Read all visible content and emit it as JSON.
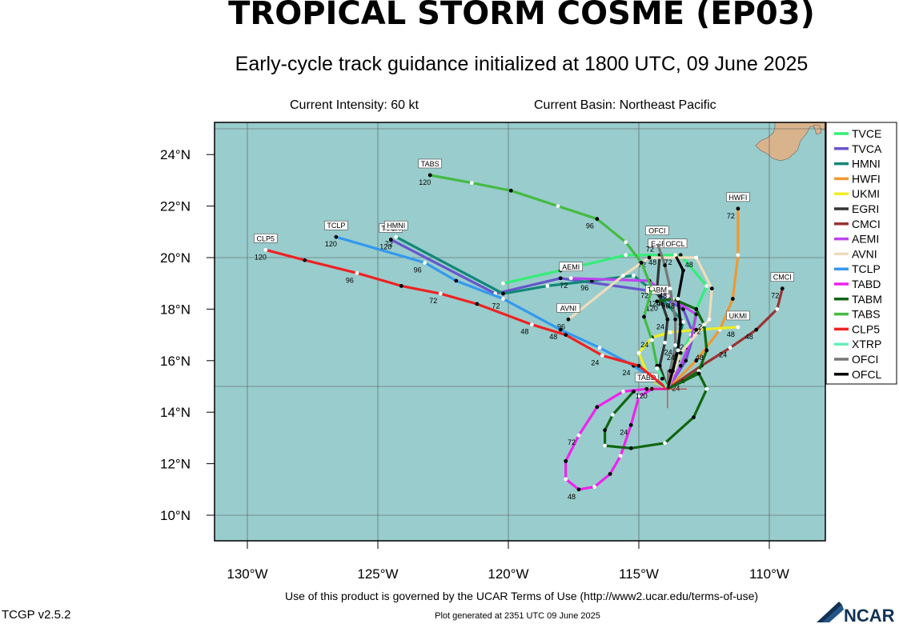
{
  "header": {
    "title": "TROPICAL STORM COSME (EP03)",
    "subtitle": "Early-cycle track guidance initialized at 1800 UTC, 09 June 2025",
    "intensity": "Current Intensity: 60 kt",
    "basin": "Current Basin: Northeast Pacific"
  },
  "footer": {
    "terms": "Use of this product is governed by the UCAR Terms of Use (http://www2.ucar.edu/terms-of-use)",
    "generated": "Plot generated at 2351 UTC   09 June 2025",
    "version": "TCGP v2.5.2",
    "logo": "NCAR"
  },
  "map": {
    "lat_labels": [
      "24°N",
      "22°N",
      "20°N",
      "18°N",
      "16°N",
      "14°N",
      "12°N",
      "10°N"
    ],
    "lon_labels": [
      "130°W",
      "125°W",
      "120°W",
      "115°W",
      "110°W"
    ],
    "ocean_color": "#99cccc",
    "land_color": "#d9b38c",
    "current_position": {
      "lon": -113.9,
      "lat": 14.9
    }
  },
  "legend": [
    {
      "name": "TVCE",
      "color": "#33ee77"
    },
    {
      "name": "TVCA",
      "color": "#6655cc"
    },
    {
      "name": "HMNI",
      "color": "#118877"
    },
    {
      "name": "HWFI",
      "color": "#ee9933"
    },
    {
      "name": "UKMI",
      "color": "#eeee22"
    },
    {
      "name": "EGRI",
      "color": "#333333"
    },
    {
      "name": "CMCI",
      "color": "#993333"
    },
    {
      "name": "AEMI",
      "color": "#bb44ee"
    },
    {
      "name": "AVNI",
      "color": "#eeddbb"
    },
    {
      "name": "TCLP",
      "color": "#3399ee"
    },
    {
      "name": "TABD",
      "color": "#ee22ee"
    },
    {
      "name": "TABM",
      "color": "#116611"
    },
    {
      "name": "TABS",
      "color": "#44bb44"
    },
    {
      "name": "CLP5",
      "color": "#ee2222"
    },
    {
      "name": "XTRP",
      "color": "#66eebb"
    },
    {
      "name": "OFCI",
      "color": "#777777"
    },
    {
      "name": "OFCL",
      "color": "#000000"
    }
  ],
  "tracks": [
    {
      "name": "TVCE",
      "label": "",
      "points": [
        [
          -113.9,
          14.9
        ],
        [
          -113.5,
          16
        ],
        [
          -113,
          17
        ],
        [
          -112.8,
          18
        ],
        [
          -112.4,
          18.9
        ],
        [
          -113.4,
          20.1
        ],
        [
          -115.5,
          20.1
        ],
        [
          -118,
          19.5
        ],
        [
          -120.2,
          19
        ]
      ],
      "hours": []
    },
    {
      "name": "TVCA",
      "label": "TVCA",
      "points": [
        [
          -113.9,
          14.9
        ],
        [
          -113.2,
          16
        ],
        [
          -112.9,
          17
        ],
        [
          -113.3,
          18
        ],
        [
          -114.5,
          18.7
        ],
        [
          -118,
          19.2
        ],
        [
          -120.5,
          18.6
        ],
        [
          -124.5,
          20.7
        ]
      ],
      "hours": [
        "120"
      ]
    },
    {
      "name": "HMNI",
      "label": "HMNI",
      "points": [
        [
          -113.9,
          14.9
        ],
        [
          -113.6,
          16.2
        ],
        [
          -113.3,
          17.5
        ],
        [
          -114.2,
          18.5
        ],
        [
          -115.2,
          19.3
        ],
        [
          -116.8,
          19.1
        ],
        [
          -118.5,
          18.9
        ],
        [
          -120.2,
          18.6
        ],
        [
          -124.3,
          20.8
        ]
      ],
      "hours": [
        "120",
        "96",
        "72"
      ]
    },
    {
      "name": "HWFI",
      "label": "HWFI",
      "points": [
        [
          -113.9,
          14.9
        ],
        [
          -112.8,
          16
        ],
        [
          -111.9,
          17.2
        ],
        [
          -111.4,
          18.4
        ],
        [
          -111.2,
          20.1
        ],
        [
          -111.2,
          21.9
        ]
      ],
      "hours": [
        "72"
      ]
    },
    {
      "name": "UKMI",
      "label": "UKMI",
      "points": [
        [
          -113.9,
          14.9
        ],
        [
          -114.6,
          15.3
        ],
        [
          -115,
          16.3
        ],
        [
          -114.5,
          16.9
        ],
        [
          -113.8,
          17.1
        ],
        [
          -112.8,
          17.2
        ],
        [
          -111.2,
          17.3
        ]
      ],
      "hours": [
        "24",
        "48"
      ]
    },
    {
      "name": "EGRI",
      "label": "EGRI",
      "points": [
        [
          -113.9,
          14.9
        ],
        [
          -114.2,
          15.8
        ],
        [
          -114,
          16.7
        ],
        [
          -113.9,
          17.6
        ],
        [
          -114.3,
          18.8
        ],
        [
          -114.2,
          20.1
        ]
      ],
      "hours": [
        "24",
        "48"
      ]
    },
    {
      "name": "CMCI",
      "label": "CMCI",
      "points": [
        [
          -113.9,
          14.9
        ],
        [
          -112.6,
          15.8
        ],
        [
          -111.5,
          16.5
        ],
        [
          -110.5,
          17.2
        ],
        [
          -109.7,
          18
        ],
        [
          -109.5,
          18.8
        ]
      ],
      "hours": [
        "24",
        "48",
        "72"
      ]
    },
    {
      "name": "AEMI",
      "label": "AEMI",
      "points": [
        [
          -113.9,
          14.9
        ],
        [
          -113.4,
          15.8
        ],
        [
          -113,
          16.8
        ],
        [
          -112.8,
          17.8
        ],
        [
          -113.9,
          18.5
        ],
        [
          -114.6,
          19.1
        ],
        [
          -117.6,
          19.2
        ]
      ],
      "hours": [
        "24",
        "48",
        "72"
      ]
    },
    {
      "name": "AVNI",
      "label": "AVNI",
      "points": [
        [
          -113.9,
          14.9
        ],
        [
          -113.4,
          16.3
        ],
        [
          -112.3,
          17.6
        ],
        [
          -112.2,
          18.8
        ],
        [
          -112.8,
          20
        ],
        [
          -114.6,
          20
        ],
        [
          -115.6,
          19.3
        ],
        [
          -117.7,
          17.6
        ]
      ],
      "hours": [
        "24",
        "48",
        "72",
        "96"
      ]
    },
    {
      "name": "TCLP",
      "label": "TCLP",
      "points": [
        [
          -113.9,
          14.9
        ],
        [
          -115.2,
          15.8
        ],
        [
          -116.5,
          16.5
        ],
        [
          -118,
          17.2
        ],
        [
          -120.2,
          18.4
        ],
        [
          -122,
          19.1
        ],
        [
          -123.2,
          19.8
        ],
        [
          -126.6,
          20.8
        ]
      ],
      "hours": [
        "24",
        "48",
        "72",
        "96",
        "120"
      ]
    },
    {
      "name": "TABD",
      "label": "TABD",
      "points": [
        [
          -113.9,
          14.9
        ],
        [
          -114.5,
          14.9
        ],
        [
          -115,
          14.6
        ],
        [
          -115.3,
          13.5
        ],
        [
          -115.7,
          12.3
        ],
        [
          -116.1,
          11.6
        ],
        [
          -116.7,
          11.1
        ],
        [
          -117.3,
          11
        ],
        [
          -117.8,
          11.4
        ],
        [
          -117.8,
          12.1
        ],
        [
          -117.3,
          13.1
        ],
        [
          -116.6,
          14.2
        ],
        [
          -115.6,
          14.8
        ],
        [
          -114.7,
          14.9
        ]
      ],
      "hours": [
        "24",
        "48",
        "72",
        "120"
      ]
    },
    {
      "name": "TABM",
      "label": "TABM",
      "points": [
        [
          -113.9,
          14.9
        ],
        [
          -113.3,
          15.2
        ],
        [
          -112.7,
          15.6
        ],
        [
          -112.4,
          16.4
        ],
        [
          -112.5,
          17.4
        ],
        [
          -112.8,
          18
        ],
        [
          -113.7,
          18.4
        ],
        [
          -114.3,
          18.3
        ]
      ],
      "hours": [
        "24",
        "48",
        "72",
        "96",
        "120"
      ]
    },
    {
      "name": "TABM2",
      "label": "",
      "points": [
        [
          -113.9,
          14.9
        ],
        [
          -112.7,
          15.5
        ],
        [
          -112.4,
          14.9
        ],
        [
          -112.9,
          13.8
        ],
        [
          -114,
          12.8
        ],
        [
          -115.3,
          12.6
        ],
        [
          -116.3,
          12.7
        ],
        [
          -116.3,
          13.3
        ],
        [
          -116,
          13.9
        ],
        [
          -115.2,
          14.8
        ]
      ],
      "hours": []
    },
    {
      "name": "TABS",
      "label": "TABS",
      "points": [
        [
          -113.9,
          14.9
        ],
        [
          -114.3,
          15.8
        ],
        [
          -114.5,
          16.8
        ],
        [
          -114.8,
          17.7
        ],
        [
          -114.5,
          18.8
        ],
        [
          -114.9,
          19.8
        ],
        [
          -115.5,
          20.6
        ],
        [
          -116.6,
          21.5
        ],
        [
          -118.1,
          22
        ],
        [
          -119.9,
          22.6
        ],
        [
          -121.4,
          22.9
        ],
        [
          -123,
          23.2
        ]
      ],
      "hours": [
        "72",
        "96",
        "120"
      ]
    },
    {
      "name": "CLP5",
      "label": "CLP5",
      "points": [
        [
          -113.9,
          14.9
        ],
        [
          -115,
          15.8
        ],
        [
          -116.4,
          16.2
        ],
        [
          -117.8,
          17
        ],
        [
          -119.1,
          17.4
        ],
        [
          -121.2,
          18.2
        ],
        [
          -122.6,
          18.6
        ],
        [
          -124.1,
          18.9
        ],
        [
          -125.8,
          19.4
        ],
        [
          -127.8,
          19.9
        ],
        [
          -129.3,
          20.3
        ]
      ],
      "hours": [
        "24",
        "48",
        "72",
        "96",
        "120"
      ]
    },
    {
      "name": "XTRP",
      "label": "",
      "points": [
        [
          -113.9,
          14.9
        ],
        [
          -114.1,
          15.3
        ],
        [
          -114.3,
          15.7
        ]
      ],
      "hours": []
    },
    {
      "name": "OFCI",
      "label": "OFCI",
      "points": [
        [
          -113.9,
          14.9
        ],
        [
          -113.8,
          15.6
        ],
        [
          -113.6,
          16.6
        ],
        [
          -113.6,
          17.6
        ],
        [
          -113.8,
          18.8
        ],
        [
          -114,
          19.7
        ],
        [
          -114.3,
          20.6
        ]
      ],
      "hours": [
        "24",
        "48",
        "72"
      ]
    },
    {
      "name": "OFCL",
      "label": "OFCL",
      "points": [
        [
          -113.9,
          14.9
        ],
        [
          -113.7,
          15.6
        ],
        [
          -113.5,
          16.4
        ],
        [
          -113.4,
          17.4
        ],
        [
          -113.5,
          18.4
        ],
        [
          -113.3,
          19.5
        ],
        [
          -113.6,
          20.1
        ]
      ],
      "hours": [
        "24",
        "48",
        "72"
      ]
    }
  ]
}
